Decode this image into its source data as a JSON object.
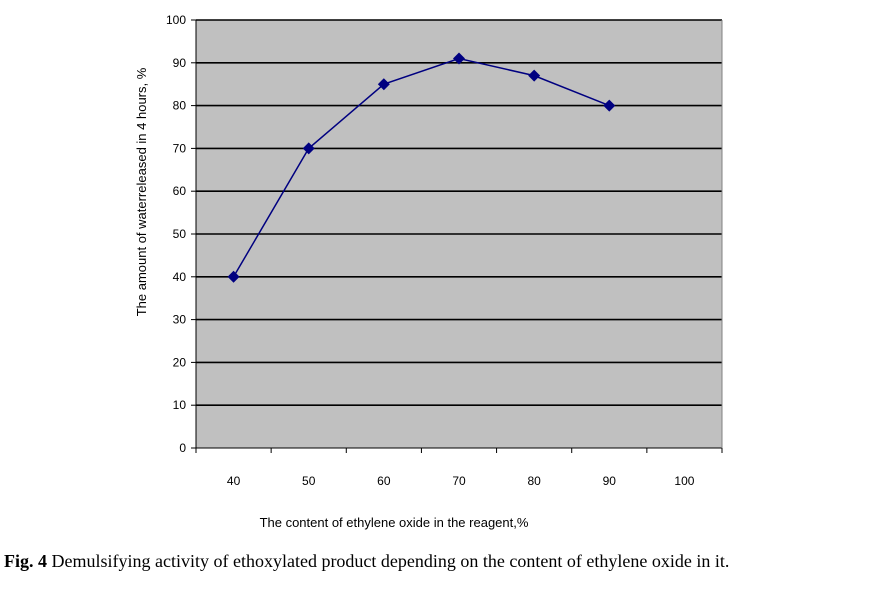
{
  "chart_data": {
    "type": "line",
    "x": [
      40,
      50,
      60,
      70,
      80,
      90
    ],
    "series": [
      {
        "values": [
          40,
          70,
          85,
          91,
          87,
          80
        ],
        "color": "#000080",
        "marker": "diamond"
      }
    ],
    "x_ticks": [
      "40",
      "50",
      "60",
      "70",
      "80",
      "90",
      "100"
    ],
    "y_ticks": [
      "0",
      "10",
      "20",
      "30",
      "40",
      "50",
      "60",
      "70",
      "80",
      "90",
      "100"
    ],
    "xlabel": "The content of ethylene oxide in the reagent,%",
    "ylabel": "The amount of waterreleased in 4 hours, %",
    "ylim": [
      0,
      100
    ],
    "xlim": [
      35,
      105
    ],
    "grid": "horizontal",
    "plot_background": "#c0c0c0",
    "legend": "none"
  },
  "caption": {
    "label": "Fig. 4",
    "text": " Demulsifying activity of ethoxylated product depending on the content of ethylene oxide in it."
  }
}
